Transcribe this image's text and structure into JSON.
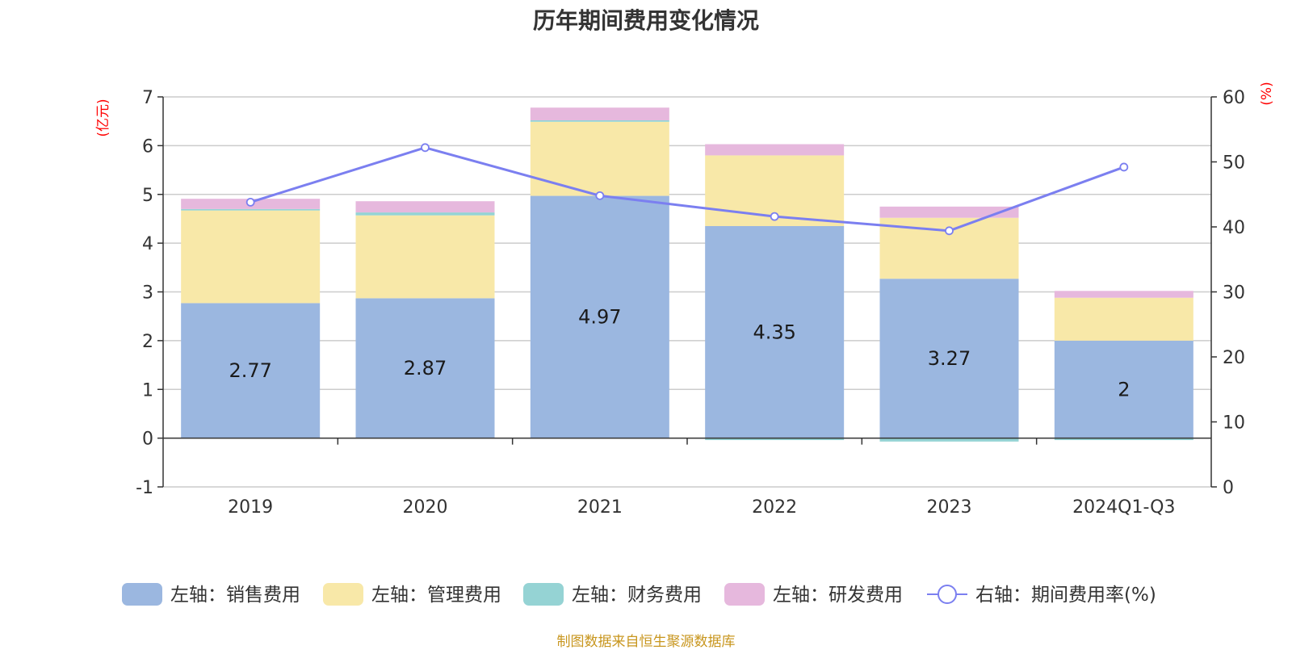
{
  "title": "历年期间费用变化情况",
  "source": "制图数据来自恒生聚源数据库",
  "colors": {
    "sales": "#9bb7e0",
    "admin": "#f8e8a8",
    "finance": "#95d3d4",
    "rd": "#e6b8dd",
    "rate": "#7b7ff0",
    "grid": "#cccccc",
    "axis": "#333333"
  },
  "chart_data": {
    "type": "bar",
    "stacked": true,
    "title": "历年期间费用变化情况",
    "categories": [
      "2019",
      "2020",
      "2021",
      "2022",
      "2023",
      "2024Q1-Q3"
    ],
    "left_axis": {
      "unit": "(亿元)",
      "ylim": [
        -1,
        7
      ],
      "ticks": [
        "-1",
        "0",
        "1",
        "2",
        "3",
        "4",
        "5",
        "6",
        "7"
      ]
    },
    "right_axis": {
      "unit": "(%)",
      "ylim": [
        0,
        60
      ],
      "ticks": [
        "0",
        "10",
        "20",
        "30",
        "40",
        "50",
        "60"
      ]
    },
    "series": [
      {
        "name": "左轴：销售费用",
        "axis": "left",
        "values": [
          2.77,
          2.87,
          4.97,
          4.35,
          3.27,
          2
        ],
        "labels": [
          "2.77",
          "2.87",
          "4.97",
          "4.35",
          "3.27",
          "2"
        ]
      },
      {
        "name": "左轴：管理费用",
        "axis": "left",
        "values": [
          1.9,
          1.7,
          1.52,
          1.45,
          1.25,
          0.88
        ]
      },
      {
        "name": "左轴：财务费用",
        "axis": "left",
        "values": [
          0.03,
          0.06,
          0.03,
          -0.04,
          -0.07,
          -0.04
        ]
      },
      {
        "name": "左轴：研发费用",
        "axis": "left",
        "values": [
          0.21,
          0.23,
          0.26,
          0.23,
          0.23,
          0.14
        ]
      },
      {
        "name": "右轴：期间费用率(%)",
        "axis": "right",
        "type": "line",
        "values": [
          43.8,
          52.2,
          44.8,
          41.6,
          39.4,
          49.2
        ]
      }
    ],
    "legend_position": "bottom"
  }
}
